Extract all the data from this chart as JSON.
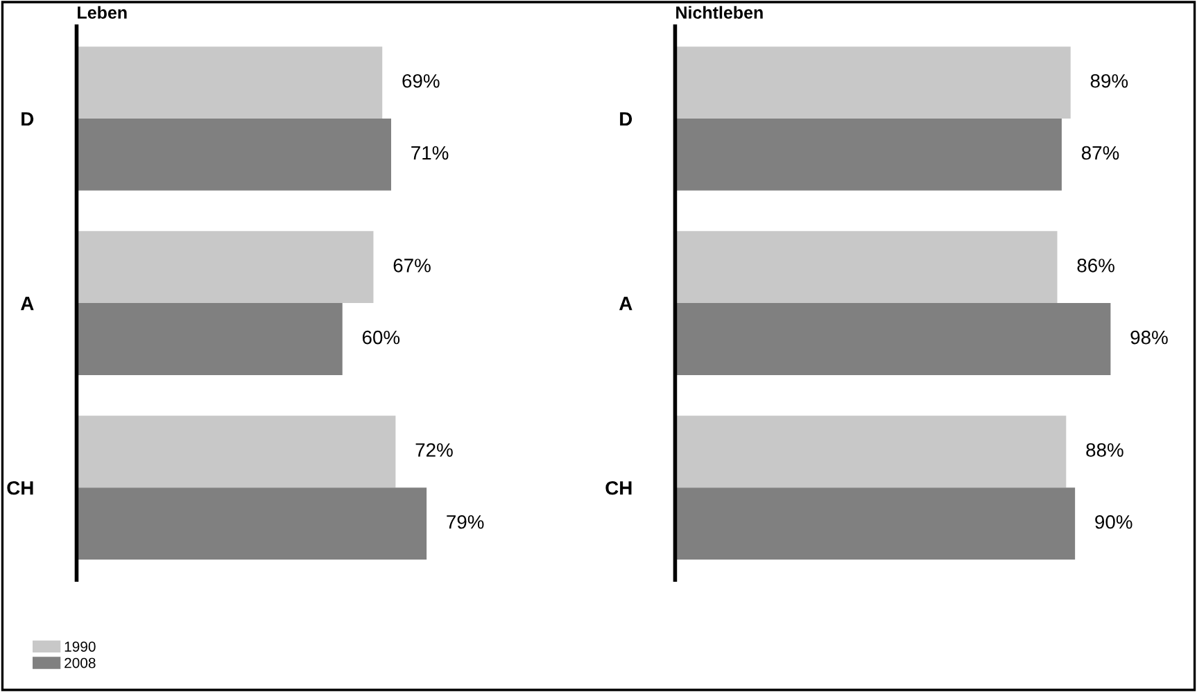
{
  "chart_data": [
    {
      "type": "bar",
      "orientation": "horizontal",
      "title": "Leben",
      "categories": [
        "D",
        "A",
        "CH"
      ],
      "tick_labels": "y",
      "data_labels": true,
      "legend": "bottom left",
      "grid": false,
      "series": [
        {
          "name": "1990",
          "color": "#c8c8c8",
          "values": [
            69,
            67,
            72
          ],
          "value_labels": [
            "69%",
            "67%",
            "72%"
          ]
        },
        {
          "name": "2008",
          "color": "#808080",
          "values": [
            71,
            60,
            79
          ],
          "value_labels": [
            "71%",
            "60%",
            "79%"
          ]
        }
      ]
    },
    {
      "type": "bar",
      "orientation": "horizontal",
      "title": "Nichtleben",
      "categories": [
        "D",
        "A",
        "CH"
      ],
      "tick_labels": "y",
      "data_labels": true,
      "grid": false,
      "series": [
        {
          "name": "1990",
          "color": "#c8c8c8",
          "values": [
            89,
            86,
            88
          ],
          "value_labels": [
            "89%",
            "86%",
            "88%"
          ]
        },
        {
          "name": "2008",
          "color": "#808080",
          "values": [
            87,
            98,
            90
          ],
          "value_labels": [
            "87%",
            "98%",
            "90%"
          ]
        }
      ]
    }
  ]
}
